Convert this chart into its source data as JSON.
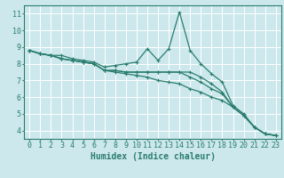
{
  "xlabel": "Humidex (Indice chaleur)",
  "xlim": [
    -0.5,
    23.5
  ],
  "ylim": [
    3.5,
    11.5
  ],
  "yticks": [
    4,
    5,
    6,
    7,
    8,
    9,
    10,
    11
  ],
  "xticks": [
    0,
    1,
    2,
    3,
    4,
    5,
    6,
    7,
    8,
    9,
    10,
    11,
    12,
    13,
    14,
    15,
    16,
    17,
    18,
    19,
    20,
    21,
    22,
    23
  ],
  "bg_color": "#cce8ec",
  "line_color": "#2a7d6e",
  "grid_color": "#ffffff",
  "series": [
    [
      8.8,
      8.6,
      8.5,
      8.5,
      8.3,
      8.2,
      8.1,
      7.8,
      7.9,
      8.0,
      8.1,
      8.9,
      8.2,
      8.9,
      11.1,
      8.8,
      8.0,
      7.4,
      6.9,
      5.5,
      5.0,
      4.2,
      3.8,
      3.7
    ],
    [
      8.8,
      8.6,
      8.5,
      8.3,
      8.2,
      8.1,
      8.0,
      7.6,
      7.6,
      7.5,
      7.5,
      7.5,
      7.5,
      7.5,
      7.5,
      7.5,
      7.2,
      6.8,
      6.3,
      5.4,
      4.9,
      4.2,
      3.8,
      3.7
    ],
    [
      8.8,
      8.6,
      8.5,
      8.3,
      8.2,
      8.1,
      8.0,
      7.6,
      7.6,
      7.5,
      7.5,
      7.5,
      7.5,
      7.5,
      7.5,
      7.2,
      6.9,
      6.5,
      6.2,
      5.4,
      4.9,
      4.2,
      3.8,
      3.7
    ],
    [
      8.8,
      8.6,
      8.5,
      8.3,
      8.2,
      8.1,
      8.0,
      7.6,
      7.5,
      7.4,
      7.3,
      7.2,
      7.0,
      6.9,
      6.8,
      6.5,
      6.3,
      6.0,
      5.8,
      5.4,
      4.9,
      4.2,
      3.8,
      3.7
    ]
  ],
  "tick_fontsize": 6.0,
  "xlabel_fontsize": 7.0
}
